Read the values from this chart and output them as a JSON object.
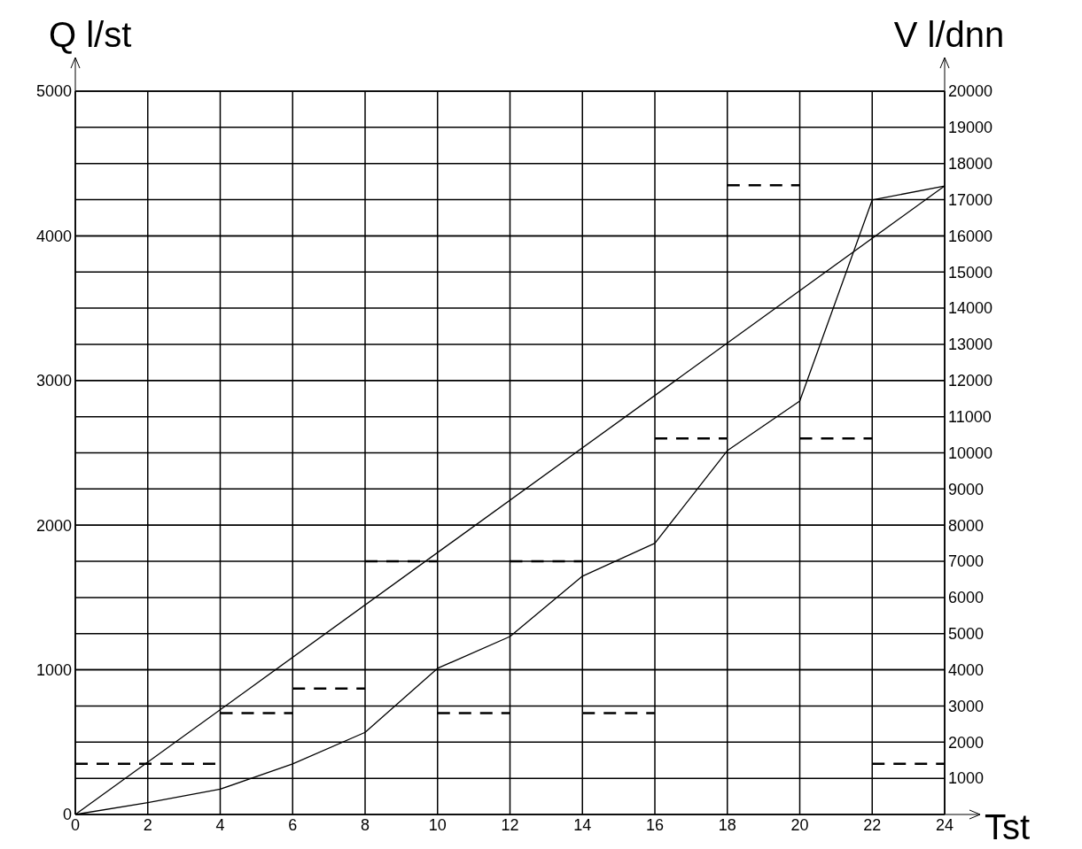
{
  "chart_data": {
    "type": "line",
    "xlabel": "Tst",
    "ylabel": "Q l/st",
    "y2label": "V l/dnn",
    "xlim": [
      0,
      24
    ],
    "xticks": [
      0,
      2,
      4,
      6,
      8,
      10,
      12,
      14,
      16,
      18,
      20,
      22,
      24
    ],
    "ylim": [
      0,
      5000
    ],
    "yticks": [
      0,
      1000,
      2000,
      3000,
      4000,
      5000
    ],
    "y2lim": [
      0,
      20000
    ],
    "y2ticks": [
      1000,
      2000,
      3000,
      4000,
      5000,
      6000,
      7000,
      8000,
      9000,
      10000,
      11000,
      12000,
      13000,
      14000,
      15000,
      16000,
      17000,
      18000,
      19000,
      20000
    ],
    "grid": true,
    "series": [
      {
        "type": "step",
        "color": "#000000",
        "line_style": "dashed",
        "x": [
          0,
          4,
          6,
          8,
          10,
          12,
          14,
          16,
          18,
          20,
          22,
          24
        ],
        "values": [
          350,
          700,
          870,
          1750,
          700,
          1750,
          700,
          2600,
          4350,
          2600,
          350,
          350
        ]
      },
      {
        "axis": "y2",
        "color": "#000000",
        "line_style": "solid",
        "x": [
          0,
          2,
          4,
          6,
          8,
          10,
          12,
          14,
          16,
          18,
          20,
          22,
          24
        ],
        "values": [
          0,
          330,
          700,
          1400,
          2270,
          4040,
          4920,
          6590,
          7500,
          10060,
          11430,
          16990,
          17380
        ]
      },
      {
        "axis": "y2",
        "color": "#000000",
        "line_style": "solid",
        "x": [
          0,
          24
        ],
        "values": [
          0,
          17380
        ]
      }
    ]
  }
}
